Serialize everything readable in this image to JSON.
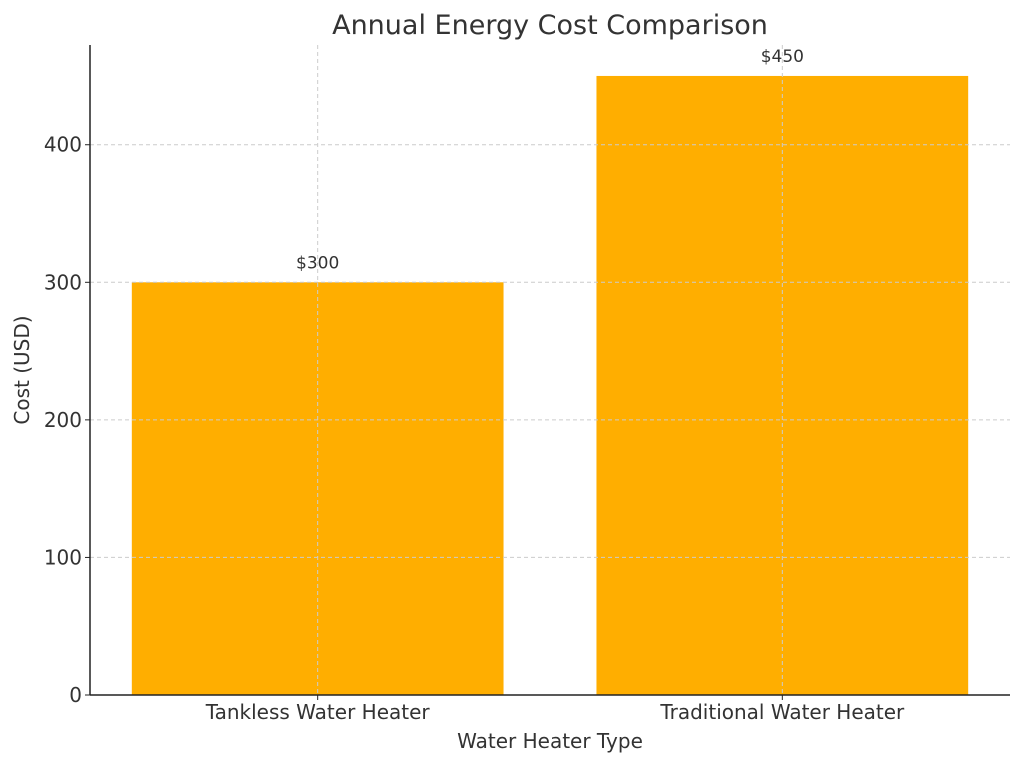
{
  "chart_data": {
    "type": "bar",
    "title": "Annual Energy Cost Comparison",
    "xlabel": "Water Heater Type",
    "ylabel": "Cost (USD)",
    "categories": [
      "Tankless Water Heater",
      "Traditional Water Heater"
    ],
    "values": [
      300,
      450
    ],
    "data_labels": [
      "$300",
      "$450"
    ],
    "ylim": [
      0,
      472.5
    ],
    "yticks": [
      0,
      100,
      200,
      300,
      400
    ],
    "grid": true,
    "bar_color": "#FFAE00"
  }
}
